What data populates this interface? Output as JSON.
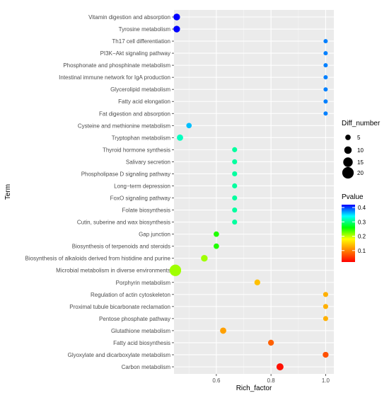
{
  "chart_data": {
    "type": "scatter",
    "xlabel": "Rich_factor",
    "ylabel": "Term",
    "xlim": [
      0.445,
      1.03
    ],
    "x_ticks": [
      "0.6",
      "0.8",
      "1.0"
    ],
    "x_tick_values": [
      0.6,
      0.8,
      1.0
    ],
    "grid": true,
    "background": "#ebebeb",
    "terms": [
      "Vitamin digestion and absorption",
      "Tyrosine metabolism",
      "Th17 cell differentiation",
      "PI3K−Akt signaling pathway",
      "Phosphonate and phosphinate metabolism",
      "Intestinal immune network for IgA production",
      "Glycerolipid metabolism",
      "Fatty acid elongation",
      "Fat digestion and absorption",
      "Cysteine and methionine metabolism",
      "Tryptophan metabolism",
      "Thyroid hormone synthesis",
      "Salivary secretion",
      "Phospholipase D signaling pathway",
      "Long−term depression",
      "FoxO signaling pathway",
      "Folate biosynthesis",
      "Cutin, suberine and wax biosynthesis",
      "Gap junction",
      "Biosynthesis of terpenoids and steroids",
      "Biosynthesis of alkaloids derived from histidine and purine",
      "Microbial metabolism in diverse environments",
      "Porphyrin metabolism",
      "Regulation of actin cytoskeleton",
      "Proximal tubule bicarbonate reclamation",
      "Pentose phosphate pathway",
      "Glutathione metabolism",
      "Fatty acid biosynthesis",
      "Glyoxylate and dicarboxylate metabolism",
      "Carbon metabolism"
    ],
    "points": [
      {
        "term": "Vitamin digestion and absorption",
        "rich_factor": 0.455,
        "diff_number": 8,
        "pvalue": 0.42
      },
      {
        "term": "Tyrosine metabolism",
        "rich_factor": 0.455,
        "diff_number": 8,
        "pvalue": 0.42
      },
      {
        "term": "Th17 cell differentiation",
        "rich_factor": 1.0,
        "diff_number": 2,
        "pvalue": 0.38
      },
      {
        "term": "PI3K−Akt signaling pathway",
        "rich_factor": 1.0,
        "diff_number": 2,
        "pvalue": 0.38
      },
      {
        "term": "Phosphonate and phosphinate metabolism",
        "rich_factor": 1.0,
        "diff_number": 2,
        "pvalue": 0.38
      },
      {
        "term": "Intestinal immune network for IgA production",
        "rich_factor": 1.0,
        "diff_number": 2,
        "pvalue": 0.38
      },
      {
        "term": "Glycerolipid metabolism",
        "rich_factor": 1.0,
        "diff_number": 2,
        "pvalue": 0.38
      },
      {
        "term": "Fatty acid elongation",
        "rich_factor": 1.0,
        "diff_number": 2,
        "pvalue": 0.38
      },
      {
        "term": "Fat digestion and absorption",
        "rich_factor": 1.0,
        "diff_number": 2,
        "pvalue": 0.38
      },
      {
        "term": "Cysteine and methionine metabolism",
        "rich_factor": 0.5,
        "diff_number": 5,
        "pvalue": 0.36
      },
      {
        "term": "Tryptophan metabolism",
        "rich_factor": 0.467,
        "diff_number": 7,
        "pvalue": 0.32
      },
      {
        "term": "Thyroid hormone synthesis",
        "rich_factor": 0.667,
        "diff_number": 4,
        "pvalue": 0.31
      },
      {
        "term": "Salivary secretion",
        "rich_factor": 0.667,
        "diff_number": 4,
        "pvalue": 0.31
      },
      {
        "term": "Phospholipase D signaling pathway",
        "rich_factor": 0.667,
        "diff_number": 4,
        "pvalue": 0.31
      },
      {
        "term": "Long−term depression",
        "rich_factor": 0.667,
        "diff_number": 4,
        "pvalue": 0.31
      },
      {
        "term": "FoxO signaling pathway",
        "rich_factor": 0.667,
        "diff_number": 4,
        "pvalue": 0.31
      },
      {
        "term": "Folate biosynthesis",
        "rich_factor": 0.667,
        "diff_number": 4,
        "pvalue": 0.31
      },
      {
        "term": "Cutin, suberine and wax biosynthesis",
        "rich_factor": 0.667,
        "diff_number": 4,
        "pvalue": 0.31
      },
      {
        "term": "Gap junction",
        "rich_factor": 0.6,
        "diff_number": 5,
        "pvalue": 0.25
      },
      {
        "term": "Biosynthesis of terpenoids and steroids",
        "rich_factor": 0.6,
        "diff_number": 5,
        "pvalue": 0.25
      },
      {
        "term": "Biosynthesis of alkaloids derived from histidine and purine",
        "rich_factor": 0.556,
        "diff_number": 8,
        "pvalue": 0.21
      },
      {
        "term": "Microbial metabolism in diverse environments",
        "rich_factor": 0.45,
        "diff_number": 20,
        "pvalue": 0.21
      },
      {
        "term": "Porphyrin metabolism",
        "rich_factor": 0.75,
        "diff_number": 6,
        "pvalue": 0.14
      },
      {
        "term": "Regulation of actin cytoskeleton",
        "rich_factor": 1.0,
        "diff_number": 4,
        "pvalue": 0.13
      },
      {
        "term": "Proximal tubule bicarbonate reclamation",
        "rich_factor": 1.0,
        "diff_number": 4,
        "pvalue": 0.13
      },
      {
        "term": "Pentose phosphate pathway",
        "rich_factor": 1.0,
        "diff_number": 4,
        "pvalue": 0.13
      },
      {
        "term": "Glutathione metabolism",
        "rich_factor": 0.625,
        "diff_number": 7,
        "pvalue": 0.12
      },
      {
        "term": "Fatty acid biosynthesis",
        "rich_factor": 0.8,
        "diff_number": 6,
        "pvalue": 0.08
      },
      {
        "term": "Glyoxylate and dicarboxylate metabolism",
        "rich_factor": 1.0,
        "diff_number": 6,
        "pvalue": 0.07
      },
      {
        "term": "Carbon metabolism",
        "rich_factor": 0.833,
        "diff_number": 9,
        "pvalue": 0.03
      }
    ],
    "size_legend": {
      "title": "Diff_number",
      "values": [
        5,
        10,
        15,
        20
      ],
      "labels": [
        "5",
        "10",
        "15",
        "20"
      ]
    },
    "color_legend": {
      "title": "Pvalue",
      "range": [
        0.02,
        0.42
      ],
      "tick_values": [
        0.1,
        0.2,
        0.3,
        0.4
      ],
      "tick_labels": [
        "0.1",
        "0.2",
        "0.3",
        "0.4"
      ],
      "colorscale": [
        "#ff0000",
        "#ff8000",
        "#ffff00",
        "#00ff00",
        "#00ffff",
        "#0000ff"
      ]
    }
  }
}
